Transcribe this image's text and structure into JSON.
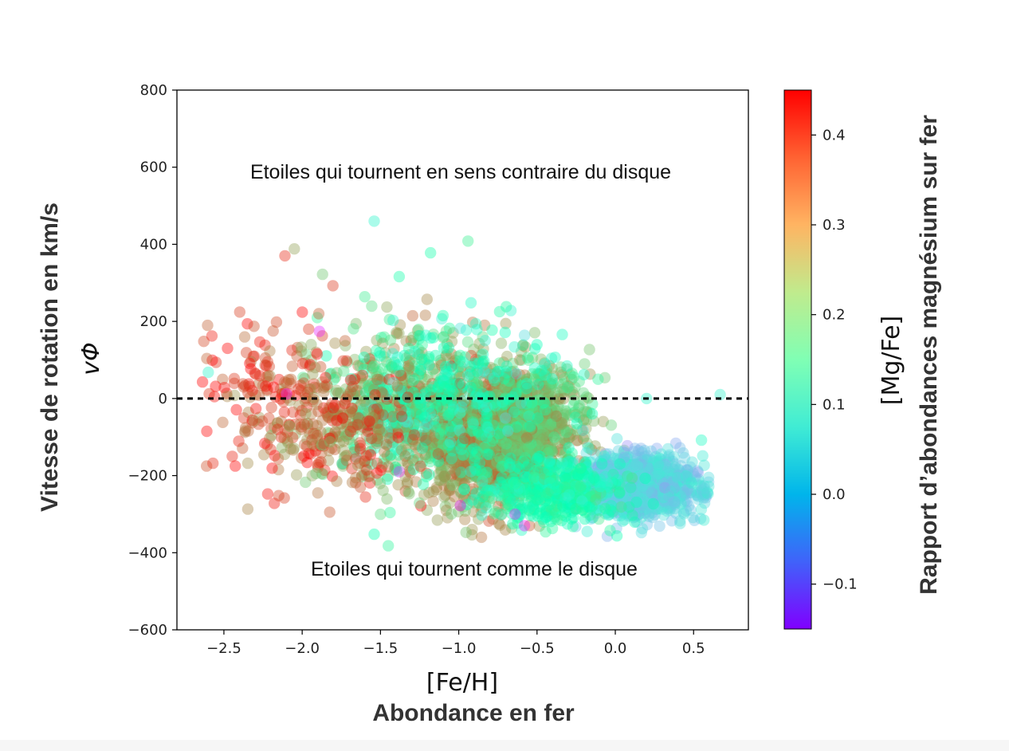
{
  "chart_data": {
    "type": "scatter",
    "xlim": [
      -2.8,
      0.85
    ],
    "ylim": [
      -600,
      800
    ],
    "xticks": [
      -2.5,
      -2.0,
      -1.5,
      -1.0,
      -0.5,
      0.0,
      0.5
    ],
    "xtick_labels": [
      "−2.5",
      "−2.0",
      "−1.5",
      "−1.0",
      "−0.5",
      "0.0",
      "0.5"
    ],
    "yticks": [
      -600,
      -400,
      -200,
      0,
      200,
      400,
      600,
      800
    ],
    "ytick_labels": [
      "−600",
      "−400",
      "−200",
      "0",
      "200",
      "400",
      "600",
      "800"
    ],
    "xlabel": "[Fe/H]",
    "xlabel_fr": "Abondance en fer",
    "ylabel_fr": "Vitesse de rotation en km/s",
    "ylabel": "vΦ",
    "colorbar": {
      "label": "[Mg/Fe]",
      "label_fr": "Rapport d’abondances magnésium sur fer",
      "vmin": -0.15,
      "vmax": 0.45,
      "ticks": [
        -0.1,
        0.0,
        0.1,
        0.2,
        0.3,
        0.4
      ],
      "tick_labels": [
        "−0.1",
        "0.0",
        "0.1",
        "0.2",
        "0.3",
        "0.4"
      ],
      "colormap": "rainbow"
    },
    "reference_line": {
      "y": 0,
      "style": "dashed",
      "color": "#000000"
    },
    "annotations": [
      {
        "text": "Etoiles qui tournent en sens contraire du disque",
        "x": -1.0,
        "y": 590
      },
      {
        "text": "Etoiles qui tournent comme le disque",
        "x": -0.89,
        "y": -440
      }
    ],
    "marker_alpha": 0.4,
    "clusters": [
      {
        "x_mean": -0.78,
        "x_sd": 0.22,
        "y_mean": -110,
        "y_sd": 85,
        "c_mean": 0.33,
        "c_sd": 0.035,
        "n": 1300
      },
      {
        "x_mean": -1.4,
        "x_sd": 0.24,
        "y_mean": -20,
        "y_sd": 100,
        "c_mean": 0.28,
        "c_sd": 0.07,
        "n": 520
      },
      {
        "x_mean": -0.55,
        "x_sd": 0.2,
        "y_mean": -40,
        "y_sd": 70,
        "c_mean": 0.27,
        "c_sd": 0.04,
        "n": 450
      },
      {
        "x_mean": 0.15,
        "x_sd": 0.18,
        "y_mean": -225,
        "y_sd": 40,
        "c_mean": 0.04,
        "c_sd": 0.025,
        "n": 1150
      },
      {
        "x_mean": -0.4,
        "x_sd": 0.22,
        "y_mean": -240,
        "y_sd": 40,
        "c_mean": 0.16,
        "c_sd": 0.04,
        "n": 420
      },
      {
        "x_mean": -1.0,
        "x_sd": 0.3,
        "y_mean": 0,
        "y_sd": 95,
        "c_mean": 0.14,
        "c_sd": 0.035,
        "n": 260
      },
      {
        "x_mean": -2.15,
        "x_sd": 0.25,
        "y_mean": 20,
        "y_sd": 110,
        "c_mean": 0.4,
        "c_sd": 0.04,
        "n": 190
      },
      {
        "x_mean": -1.75,
        "x_sd": 0.22,
        "y_mean": -110,
        "y_sd": 80,
        "c_mean": 0.37,
        "c_sd": 0.05,
        "n": 170
      }
    ],
    "outliers": [
      {
        "x": -1.54,
        "y": 460,
        "c": 0.1
      },
      {
        "x": -1.18,
        "y": 378,
        "c": 0.17
      },
      {
        "x": -2.05,
        "y": 388,
        "c": 0.32
      },
      {
        "x": -2.11,
        "y": 370,
        "c": 0.42
      },
      {
        "x": -1.38,
        "y": 316,
        "c": 0.17
      },
      {
        "x": -1.87,
        "y": 322,
        "c": 0.28
      },
      {
        "x": -1.6,
        "y": 264,
        "c": 0.22
      },
      {
        "x": -1.1,
        "y": 215,
        "c": 0.17
      },
      {
        "x": -0.99,
        "y": 182,
        "c": 0.06
      },
      {
        "x": -0.58,
        "y": 164,
        "c": 0.05
      },
      {
        "x": -1.89,
        "y": 174,
        "c": -0.12
      },
      {
        "x": -2.1,
        "y": 12,
        "c": -0.12
      },
      {
        "x": 0.67,
        "y": 10,
        "c": 0.09
      },
      {
        "x": 0.2,
        "y": 0,
        "c": 0.1
      },
      {
        "x": -0.2,
        "y": 62,
        "c": 0.12
      },
      {
        "x": -0.11,
        "y": 50,
        "c": 0.2
      },
      {
        "x": -2.6,
        "y": 68,
        "c": 0.1
      },
      {
        "x": -1.54,
        "y": -352,
        "c": 0.16
      },
      {
        "x": -1.45,
        "y": -382,
        "c": 0.2
      },
      {
        "x": -0.58,
        "y": -330,
        "c": -0.13
      },
      {
        "x": -0.18,
        "y": -345,
        "c": 0.08
      },
      {
        "x": -1.38,
        "y": -190,
        "c": -0.11
      },
      {
        "x": -0.99,
        "y": -278,
        "c": -0.12
      },
      {
        "x": -0.64,
        "y": -300,
        "c": -0.12
      },
      {
        "x": 0.55,
        "y": -108,
        "c": 0.12
      },
      {
        "x": -2.57,
        "y": -168,
        "c": 0.42
      },
      {
        "x": -2.15,
        "y": -252,
        "c": 0.4
      },
      {
        "x": -1.9,
        "y": -245,
        "c": 0.36
      }
    ]
  }
}
